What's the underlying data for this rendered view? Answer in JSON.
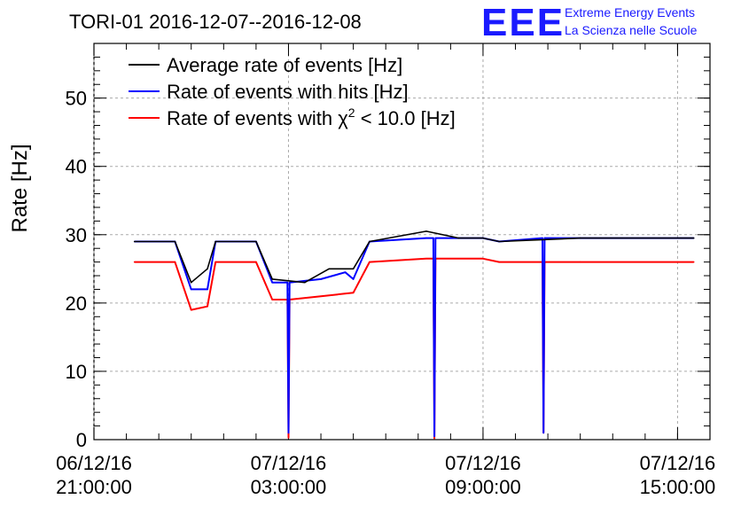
{
  "logo": {
    "mark": "EEE",
    "line1": "Extreme Energy Events",
    "line2": "La Scienza nelle Scuole",
    "color": "#1a1aff"
  },
  "chart_data": {
    "type": "line",
    "title": "TORI-01 2016-12-07--2016-12-08",
    "ylabel": "Rate [Hz]",
    "xlabel": "",
    "ylim": [
      0,
      58
    ],
    "yticks": [
      0,
      10,
      20,
      30,
      40,
      50
    ],
    "xlim": [
      "2016-12-06 21:00",
      "2016-12-07 16:00"
    ],
    "xticks": [
      {
        "t": "2016-12-06 21:00",
        "line1": "06/12/16",
        "line2": "21:00:00"
      },
      {
        "t": "2016-12-07 03:00",
        "line1": "07/12/16",
        "line2": "03:00:00"
      },
      {
        "t": "2016-12-07 09:00",
        "line1": "07/12/16",
        "line2": "09:00:00"
      },
      {
        "t": "2016-12-07 15:00",
        "line1": "07/12/16",
        "line2": "15:00:00"
      }
    ],
    "grid": true,
    "legend_position": "top-left",
    "legend": [
      {
        "text": "Average rate of events [Hz]",
        "color": "#000000"
      },
      {
        "text": "Rate of events with hits [Hz]",
        "color": "#0000ff"
      },
      {
        "text_prefix": "Rate of events with ",
        "chi": "χ",
        "sup": "2",
        "text_suffix": " < 10.0 [Hz]",
        "color": "#ff0000"
      }
    ],
    "series": [
      {
        "name": "Average rate of events [Hz]",
        "color": "#000000",
        "points": [
          [
            "2016-12-06 22:15",
            29.0
          ],
          [
            "2016-12-06 23:30",
            29.0
          ],
          [
            "2016-12-07 00:00",
            23.0
          ],
          [
            "2016-12-07 00:30",
            25.0
          ],
          [
            "2016-12-07 00:45",
            29.0
          ],
          [
            "2016-12-07 02:00",
            29.0
          ],
          [
            "2016-12-07 02:30",
            23.5
          ],
          [
            "2016-12-07 03:30",
            23.0
          ],
          [
            "2016-12-07 04:15",
            25.0
          ],
          [
            "2016-12-07 05:00",
            25.0
          ],
          [
            "2016-12-07 05:30",
            29.0
          ],
          [
            "2016-12-07 07:15",
            30.5
          ],
          [
            "2016-12-07 08:15",
            29.5
          ],
          [
            "2016-12-07 09:00",
            29.5
          ],
          [
            "2016-12-07 09:30",
            29.0
          ],
          [
            "2016-12-07 12:00",
            29.5
          ],
          [
            "2016-12-07 15:30",
            29.5
          ]
        ]
      },
      {
        "name": "Rate of events with hits [Hz]",
        "color": "#0000ff",
        "points": [
          [
            "2016-12-06 22:15",
            29.0
          ],
          [
            "2016-12-06 23:30",
            29.0
          ],
          [
            "2016-12-07 00:00",
            22.0
          ],
          [
            "2016-12-07 00:30",
            22.0
          ],
          [
            "2016-12-07 00:45",
            29.0
          ],
          [
            "2016-12-07 02:00",
            29.0
          ],
          [
            "2016-12-07 02:30",
            23.0
          ],
          [
            "2016-12-07 02:58",
            23.0
          ],
          [
            "2016-12-07 03:00",
            1.0
          ],
          [
            "2016-12-07 03:02",
            23.0
          ],
          [
            "2016-12-07 04:00",
            23.5
          ],
          [
            "2016-12-07 04:45",
            24.5
          ],
          [
            "2016-12-07 05:00",
            23.5
          ],
          [
            "2016-12-07 05:30",
            29.0
          ],
          [
            "2016-12-07 07:15",
            29.5
          ],
          [
            "2016-12-07 07:28",
            29.5
          ],
          [
            "2016-12-07 07:30",
            0.5
          ],
          [
            "2016-12-07 07:32",
            29.5
          ],
          [
            "2016-12-07 09:00",
            29.5
          ],
          [
            "2016-12-07 09:30",
            29.0
          ],
          [
            "2016-12-07 10:50",
            29.5
          ],
          [
            "2016-12-07 10:52",
            1.0
          ],
          [
            "2016-12-07 10:54",
            29.5
          ],
          [
            "2016-12-07 12:00",
            29.5
          ],
          [
            "2016-12-07 15:30",
            29.5
          ]
        ]
      },
      {
        "name": "Rate of events with χ2 < 10.0 [Hz]",
        "color": "#ff0000",
        "points": [
          [
            "2016-12-06 22:15",
            26.0
          ],
          [
            "2016-12-06 23:30",
            26.0
          ],
          [
            "2016-12-07 00:00",
            19.0
          ],
          [
            "2016-12-07 00:30",
            19.5
          ],
          [
            "2016-12-07 00:45",
            26.0
          ],
          [
            "2016-12-07 02:00",
            26.0
          ],
          [
            "2016-12-07 02:30",
            20.5
          ],
          [
            "2016-12-07 02:58",
            20.5
          ],
          [
            "2016-12-07 03:00",
            0.3
          ],
          [
            "2016-12-07 03:02",
            20.5
          ],
          [
            "2016-12-07 04:00",
            21.0
          ],
          [
            "2016-12-07 05:00",
            21.5
          ],
          [
            "2016-12-07 05:30",
            26.0
          ],
          [
            "2016-12-07 07:15",
            26.5
          ],
          [
            "2016-12-07 07:28",
            26.5
          ],
          [
            "2016-12-07 07:30",
            0.2
          ],
          [
            "2016-12-07 07:32",
            26.5
          ],
          [
            "2016-12-07 09:00",
            26.5
          ],
          [
            "2016-12-07 09:30",
            26.0
          ],
          [
            "2016-12-07 10:50",
            26.0
          ],
          [
            "2016-12-07 10:52",
            1.0
          ],
          [
            "2016-12-07 10:54",
            26.0
          ],
          [
            "2016-12-07 12:00",
            26.0
          ],
          [
            "2016-12-07 15:30",
            26.0
          ]
        ]
      }
    ]
  }
}
